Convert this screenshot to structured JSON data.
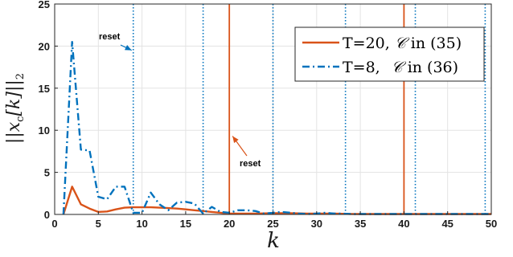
{
  "chart_data": {
    "type": "line",
    "xlabel": "k",
    "ylabel": "||x_c[k]||_2",
    "ylabel_parts": {
      "left": "||",
      "var": "x",
      "sub": "c",
      "arg": "[k]",
      "right": "||",
      "norm_sub": "2"
    },
    "xlim": [
      0,
      50
    ],
    "ylim": [
      0,
      25
    ],
    "xticks": [
      0,
      5,
      10,
      15,
      20,
      25,
      30,
      35,
      40,
      45,
      50
    ],
    "yticks": [
      0,
      5,
      10,
      15,
      20,
      25
    ],
    "grid": true,
    "legend_position": "top-right",
    "series": [
      {
        "name": "T=20, 𝒞 in (35)",
        "legend": {
          "prefix": "T=20,",
          "set": "𝒞",
          "suffix": "in (35)"
        },
        "color": "#d95319",
        "style": "solid",
        "x": [
          1,
          2,
          3,
          4,
          5,
          6,
          7,
          8,
          9,
          10,
          11,
          12,
          13,
          14,
          15,
          16,
          17,
          18,
          19,
          20,
          21,
          22,
          23,
          24,
          25,
          26,
          27,
          28,
          29,
          30,
          31,
          32,
          33,
          34,
          35,
          36,
          37,
          38,
          39,
          40,
          41,
          42,
          43,
          44,
          45,
          46,
          47,
          48,
          49,
          50
        ],
        "y": [
          0,
          3.3,
          1.2,
          0.7,
          0.3,
          0.35,
          0.6,
          0.8,
          0.85,
          0.85,
          0.85,
          0.8,
          0.75,
          0.7,
          0.6,
          0.5,
          0.4,
          0.3,
          0.2,
          0.1,
          0.1,
          0.1,
          0.1,
          0.12,
          0.15,
          0.15,
          0.15,
          0.12,
          0.1,
          0.1,
          0.1,
          0.1,
          0.08,
          0.06,
          0.05,
          0.05,
          0.05,
          0.05,
          0.05,
          0.05,
          0.05,
          0.05,
          0.05,
          0.05,
          0.05,
          0.05,
          0.05,
          0.05,
          0.05,
          0.05
        ]
      },
      {
        "name": "T=8, 𝒞 in (36)",
        "legend": {
          "prefix": "T=8,",
          "set": "𝒞",
          "suffix": "in (36)"
        },
        "color": "#0072bd",
        "style": "dashdot",
        "x": [
          1,
          2,
          3,
          4,
          5,
          6,
          7,
          8,
          9,
          10,
          11,
          12,
          13,
          14,
          15,
          16,
          17,
          18,
          19,
          20,
          21,
          22,
          23,
          24,
          25,
          26,
          27,
          28,
          29,
          30,
          31,
          32,
          33,
          34,
          35,
          36,
          37,
          38,
          39,
          40,
          41,
          42,
          43,
          44,
          45,
          46,
          47,
          48,
          49,
          50
        ],
        "y": [
          0,
          20.5,
          7.7,
          7.6,
          2.1,
          1.8,
          3.3,
          3.3,
          0.2,
          0.2,
          2.6,
          1.2,
          0.5,
          1.4,
          1.5,
          1.3,
          0.1,
          0.9,
          0.3,
          0.2,
          0.5,
          0.5,
          0.4,
          0.1,
          0.2,
          0.3,
          0.2,
          0.1,
          0.05,
          0.1,
          0.2,
          0.1,
          0.1,
          0.05,
          0.05,
          0.05,
          0.05,
          0.05,
          0.05,
          0.05,
          0.05,
          0.05,
          0.05,
          0.05,
          0.05,
          0.05,
          0.05,
          0.05,
          0.05,
          0.05
        ]
      }
    ],
    "vlines": [
      {
        "x": 20,
        "color": "#d95319",
        "style": "solid"
      },
      {
        "x": 40,
        "color": "#d95319",
        "style": "solid"
      },
      {
        "x": 9,
        "color": "#0072bd",
        "style": "dotted"
      },
      {
        "x": 17,
        "color": "#0072bd",
        "style": "dotted"
      },
      {
        "x": 25,
        "color": "#0072bd",
        "style": "dotted"
      },
      {
        "x": 33.3,
        "color": "#0072bd",
        "style": "dotted"
      },
      {
        "x": 41.3,
        "color": "#0072bd",
        "style": "dotted"
      },
      {
        "x": 49.3,
        "color": "#0072bd",
        "style": "dotted"
      }
    ],
    "annotations": [
      {
        "text": "reset",
        "color": "#0072bd",
        "arrow_to": [
          9,
          19.5
        ]
      },
      {
        "text": "reset",
        "color": "#d95319",
        "arrow_to": [
          20,
          9.3
        ]
      }
    ]
  }
}
